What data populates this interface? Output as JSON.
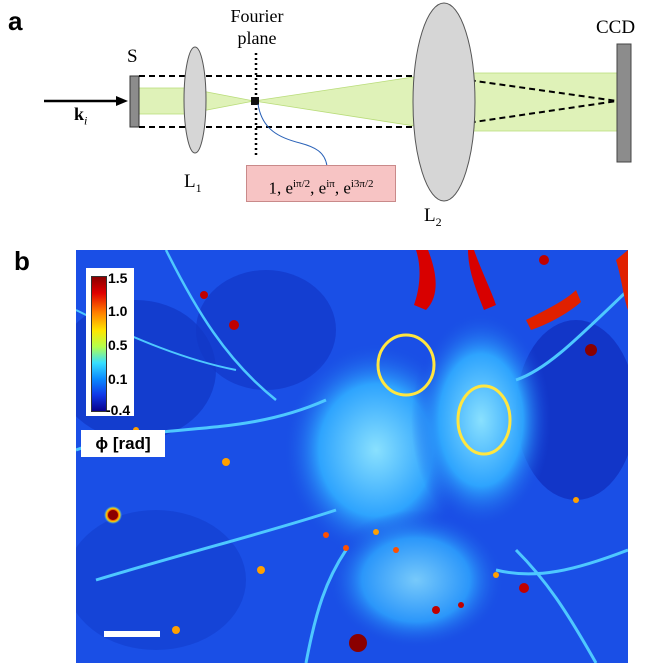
{
  "panel_a": {
    "label": "a",
    "wave_vector": {
      "symbol": "k",
      "subscript": "i"
    },
    "sample_label": "S",
    "lens1": {
      "symbol": "L",
      "subscript": "1"
    },
    "lens2": {
      "symbol": "L",
      "subscript": "2"
    },
    "fourier_line1": "Fourier",
    "fourier_line2": "plane",
    "detector_label": "CCD",
    "phase_shifts": [
      "1",
      "iπ/2",
      "iπ",
      "i3π/2"
    ]
  },
  "panel_b": {
    "label": "b",
    "colorbar_ticks": [
      "1.5",
      "1.0",
      "0.5",
      "0.1",
      "-0.4"
    ],
    "unit_label": "ϕ [rad]",
    "colors": {
      "low": "#08008c",
      "mid": "#37e0ff",
      "high": "#8a0000"
    }
  }
}
